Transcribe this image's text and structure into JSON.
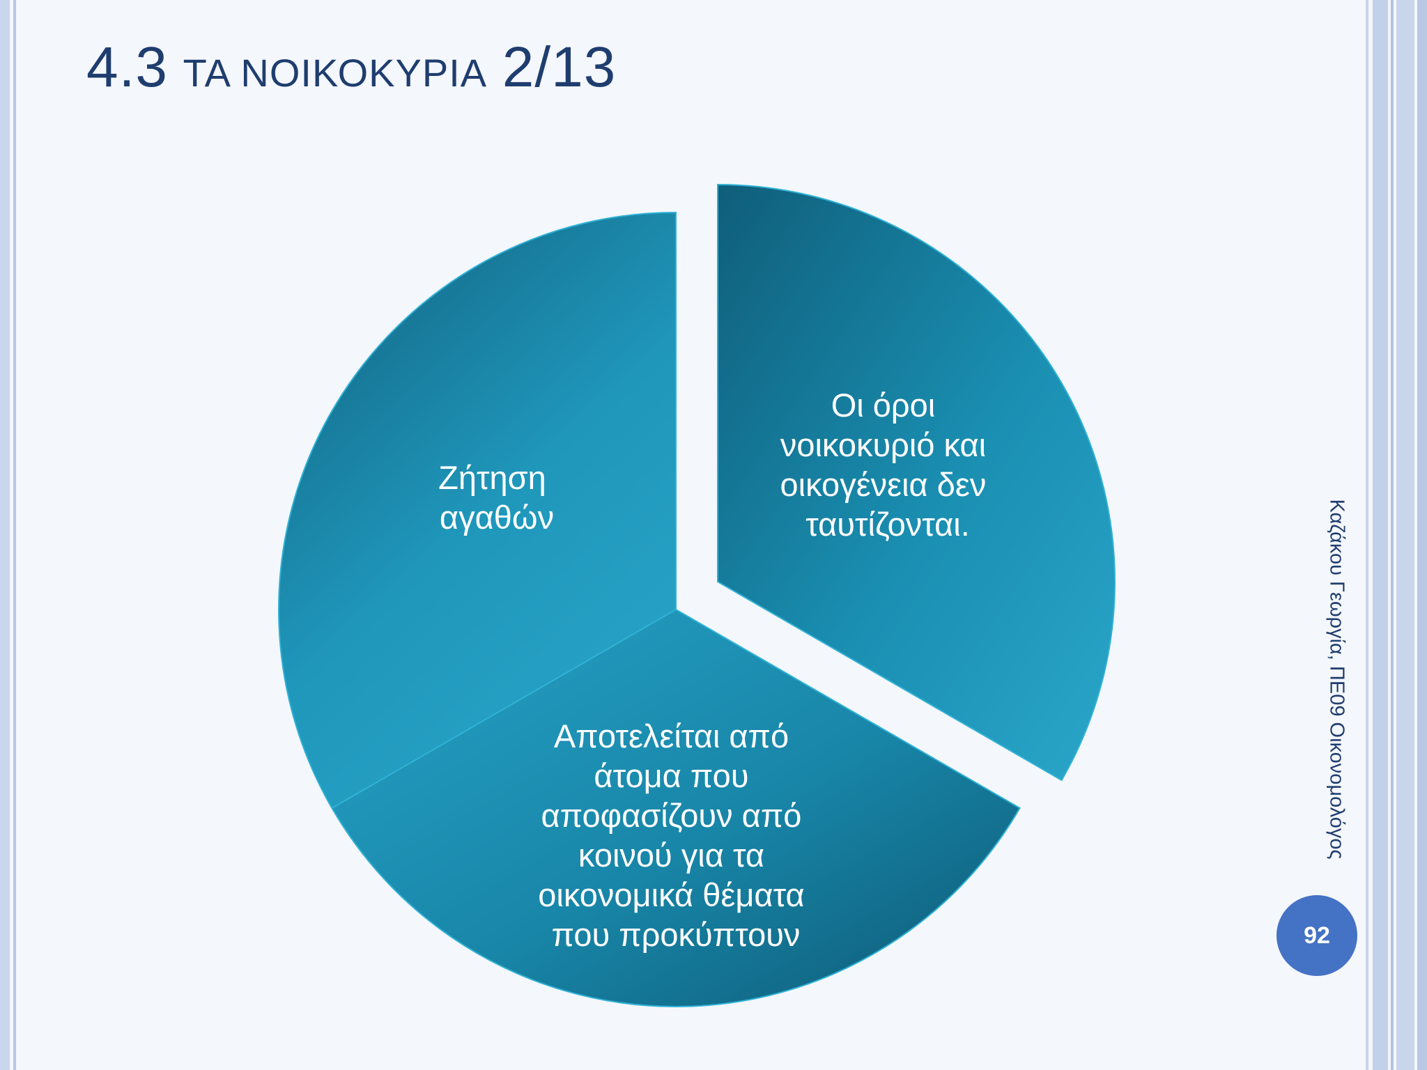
{
  "slide": {
    "title_number": "4.3",
    "title_text": "ΤΑ ΝΟΙΚΟΚΥΡΙΑ",
    "title_page": "2/13",
    "author_line": "Καζάκου Γεωργία, ΠΕ09 Οικονομολόγος",
    "page_number": "92"
  },
  "diagram": {
    "segments": [
      {
        "lines": [
          "Οι όροι",
          "νοικοκυριό και",
          "οικογένεια δεν",
          "ταυτίζονται."
        ]
      },
      {
        "lines": [
          "Αποτελείται από",
          "άτομα που",
          "αποφασίζουν από",
          "κοινού για τα",
          "οικονομικά θέματα",
          "που προκύπτουν"
        ]
      },
      {
        "lines": [
          "Ζήτηση",
          "αγαθών"
        ]
      }
    ]
  },
  "colors": {
    "segment_dark": "#0f5f7c",
    "segment_light": "#2aa5c8",
    "title": "#1f3d6e",
    "page_badge": "#4472c4"
  }
}
